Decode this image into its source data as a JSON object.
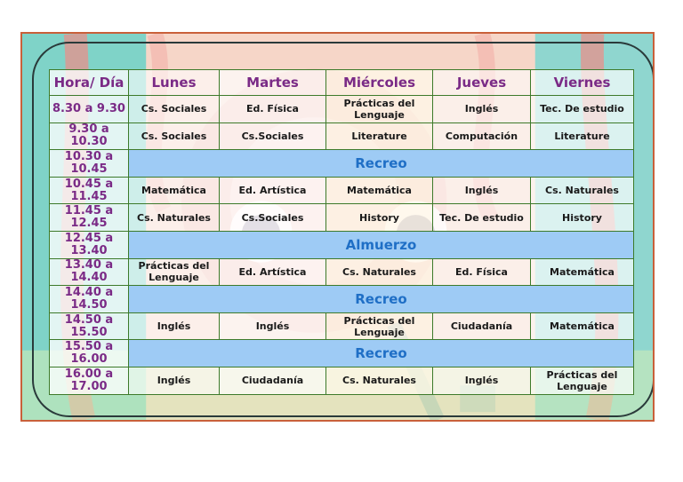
{
  "schedule": {
    "corner_header": "Hora/ Día",
    "days": [
      "Lunes",
      "Martes",
      "Miércoles",
      "Jueves",
      "Viernes"
    ],
    "rows": [
      {
        "type": "classes",
        "time": "8.30 a 9.30",
        "cells": [
          "Cs. Sociales",
          "Ed. Física",
          "Prácticas del Lenguaje",
          "Inglés",
          "Tec. De estudio"
        ]
      },
      {
        "type": "classes",
        "time": "9.30 a 10.30",
        "cells": [
          "Cs. Sociales",
          "Cs.Sociales",
          "Literature",
          "Computación",
          "Literature"
        ]
      },
      {
        "type": "break",
        "time": "10.30 a 10.45",
        "label": "Recreo"
      },
      {
        "type": "classes",
        "time": "10.45 a 11.45",
        "cells": [
          "Matemática",
          "Ed. Artística",
          "Matemática",
          "Inglés",
          "Cs. Naturales"
        ]
      },
      {
        "type": "classes",
        "time": "11.45 a 12.45",
        "cells": [
          "Cs. Naturales",
          "Cs.Sociales",
          "History",
          "Tec. De estudio",
          "History"
        ]
      },
      {
        "type": "break",
        "time": "12.45 a 13.40",
        "label": "Almuerzo"
      },
      {
        "type": "classes",
        "time": "13.40 a 14.40",
        "cells": [
          "Prácticas del Lenguaje",
          "Ed. Artística",
          "Cs. Naturales",
          "Ed. Física",
          "Matemática"
        ]
      },
      {
        "type": "break",
        "time": "14.40 a 14.50",
        "label": "Recreo"
      },
      {
        "type": "classes",
        "time": "14.50 a 15.50",
        "cells": [
          "Inglés",
          "Inglés",
          "Prácticas del Lenguaje",
          "Ciudadanía",
          "Matemática"
        ]
      },
      {
        "type": "break",
        "time": "15.50 a 16.00",
        "label": "Recreo"
      },
      {
        "type": "classes",
        "time": "16.00 a 17.00",
        "cells": [
          "Inglés",
          "Ciudadanía",
          "Cs. Naturales",
          "Inglés",
          "Prácticas del Lenguaje"
        ]
      }
    ]
  },
  "colors": {
    "frame_border": "#c9603a",
    "header_text": "#7a2a86",
    "break_band": "#9ecbf5",
    "break_text": "#1f6fc6",
    "grid_lines": "#3d7a2a"
  }
}
